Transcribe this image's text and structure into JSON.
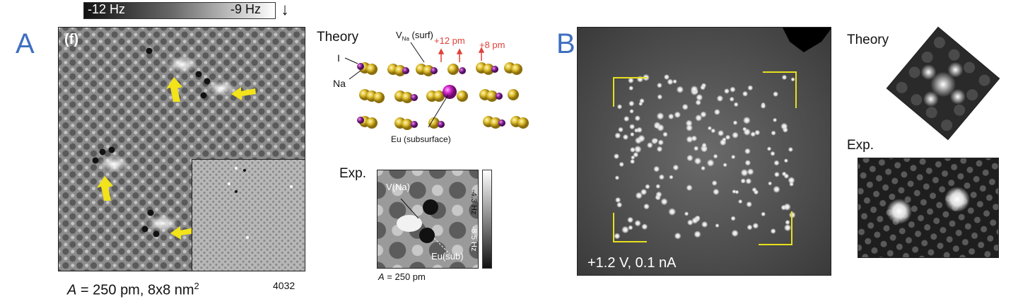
{
  "panelA": {
    "letter": "A",
    "colorbar": {
      "left_label": "-12 Hz",
      "right_label": "-9 Hz",
      "arrow": "↓"
    },
    "subpanel_tag": "(f)",
    "caption_pre": "A",
    "caption_post": " = 250 pm, 8x8 nm",
    "caption_sup": "2",
    "image_id": "4032",
    "theory_title": "Theory",
    "labels": {
      "vna": "V",
      "vna_sub": "Na",
      "vna_suffix": " (surf)",
      "up12": "+12 pm",
      "up8": "+8 pm",
      "iodine": "I",
      "sodium": "Na",
      "eu": "Eu (subsurface)"
    },
    "exp_title": "Exp.",
    "exp_labels": {
      "vna": "V(Na)",
      "eu": "Eu(sub)"
    },
    "exp_colorbar": {
      "top": "-4.3 Hz",
      "bottom": "-8.5 Hz"
    },
    "exp_caption_pre": "A",
    "exp_caption_post": " = 250 pm"
  },
  "panelB": {
    "letter": "B",
    "bias_label": "+1.2 V, 0.1 nA",
    "theory_title": "Theory",
    "exp_title": "Exp."
  },
  "colors": {
    "accent_blue": "#3f6fc0",
    "arrow_yellow": "#f2e31a",
    "bracket_yellow": "#e8e01c",
    "annot_red": "#e0403a",
    "iodine": "#d9b92e",
    "sodium": "#8d2ea0"
  }
}
